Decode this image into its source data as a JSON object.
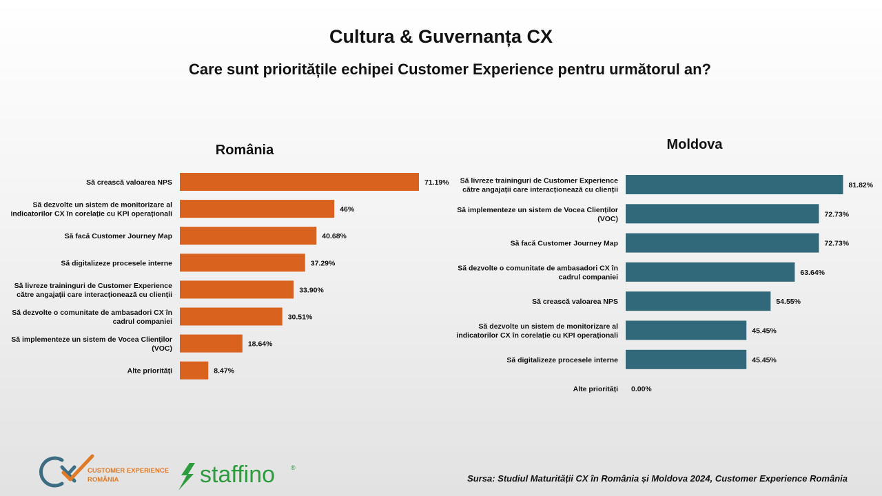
{
  "header": {
    "title": "Cultura & Guvernanța CX",
    "subtitle": "Care sunt prioritățile echipei Customer Experience pentru următorul an?"
  },
  "colors": {
    "romania": "#d9621e",
    "moldova": "#31697a",
    "staffino": "#2e9b3e",
    "cx_orange": "#e07a25",
    "cx_blue": "#3d6d82"
  },
  "chart_data": [
    {
      "type": "bar",
      "orientation": "horizontal",
      "title": "România",
      "categories": [
        [
          "Să crească valoarea NPS"
        ],
        [
          "Să dezvolte un sistem de monitorizare al",
          "indicatorilor CX în corelație cu KPI operaționali"
        ],
        [
          "Să facă Customer Journey Map"
        ],
        [
          "Să digitalizeze procesele interne"
        ],
        [
          "Să livreze traininguri de Customer Experience",
          "către angajații care interacționează cu clienții"
        ],
        [
          "Să dezvolte o comunitate de ambasadori CX în",
          "cadrul companiei"
        ],
        [
          "Să implementeze un sistem de Vocea Clienților",
          "(VOC)"
        ],
        [
          "Alte priorități"
        ]
      ],
      "values": [
        71.19,
        46,
        40.68,
        37.29,
        33.9,
        30.51,
        18.64,
        8.47
      ],
      "value_labels": [
        "71.19%",
        "46%",
        "40.68%",
        "37.29%",
        "33.90%",
        "30.51%",
        "18.64%",
        "8.47%"
      ],
      "color": "#d9621e",
      "xlim": [
        0,
        100
      ],
      "grid": false
    },
    {
      "type": "bar",
      "orientation": "horizontal",
      "title": "Moldova",
      "categories": [
        [
          "Să livreze traininguri de Customer Experience",
          "către angajații care interacționează cu clienții"
        ],
        [
          "Să implementeze un sistem de Vocea Clienților",
          "(VOC)"
        ],
        [
          "Să facă Customer Journey Map"
        ],
        [
          "Să dezvolte o comunitate de ambasadori CX în",
          "cadrul companiei"
        ],
        [
          "Să crească valoarea NPS"
        ],
        [
          "Să dezvolte un sistem de monitorizare al",
          "indicatorilor CX în corelație cu KPI operaționali"
        ],
        [
          "Să digitalizeze procesele interne"
        ],
        [
          "Alte priorități"
        ]
      ],
      "values": [
        81.82,
        72.73,
        72.73,
        63.64,
        54.55,
        45.45,
        45.45,
        0.0
      ],
      "value_labels": [
        "81.82%",
        "72.73%",
        "72.73%",
        "63.64%",
        "54.55%",
        "45.45%",
        "45.45%",
        "0.00%"
      ],
      "color": "#31697a",
      "xlim": [
        0,
        100
      ],
      "grid": false
    }
  ],
  "footer": {
    "source": "Sursa: Studiul Maturității CX în România și Moldova 2024, Customer Experience România",
    "logo_cx_line1": "CUSTOMER EXPERIENCE",
    "logo_cx_line2": "ROMÂNIA",
    "logo_staffino": "staffino",
    "logo_staffino_reg": "®"
  }
}
